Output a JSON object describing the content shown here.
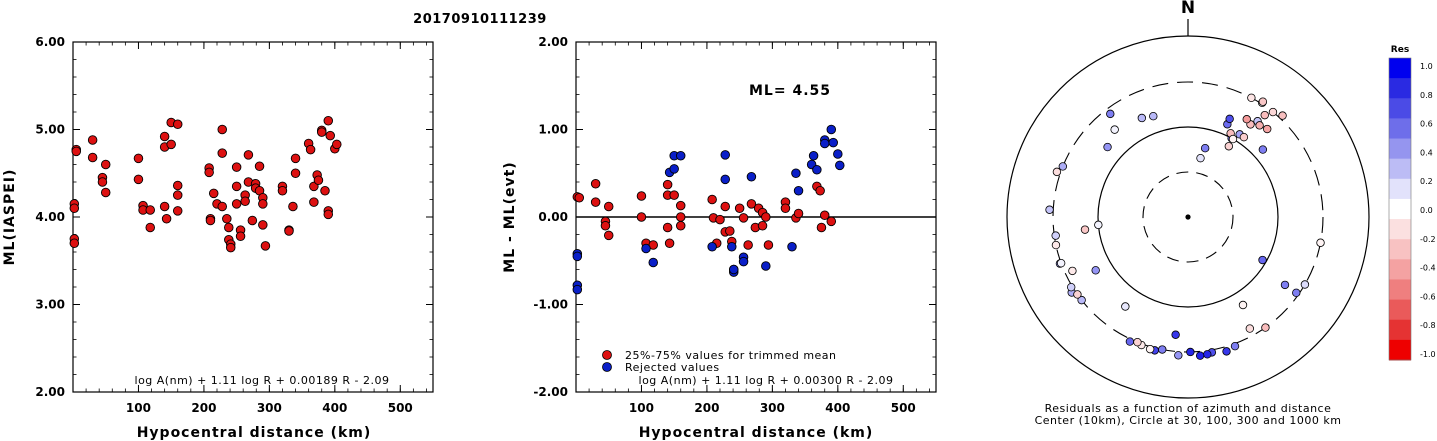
{
  "title": "20170910111239",
  "colors": {
    "accepted": "#dd1111",
    "rejected": "#0a1fc8",
    "frame": "#000000"
  },
  "chart_data": [
    {
      "type": "scatter",
      "xlabel": "Hypocentral distance (km)",
      "ylabel": "ML(IASPEI)",
      "xlim": [
        0,
        550
      ],
      "ylim": [
        2.0,
        6.0
      ],
      "xticks": [
        "100",
        "200",
        "300",
        "400",
        "500"
      ],
      "yticks": [
        "2.00",
        "3.00",
        "4.00",
        "5.00",
        "6.00"
      ],
      "formula": "log A(nm) + 1.11 log R + 0.00189 R - 2.09",
      "points": [
        [
          2,
          4.15
        ],
        [
          2,
          4.1
        ],
        [
          2,
          3.75
        ],
        [
          2,
          3.7
        ],
        [
          5,
          4.77
        ],
        [
          5,
          4.75
        ],
        [
          30,
          4.88
        ],
        [
          30,
          4.68
        ],
        [
          45,
          4.45
        ],
        [
          45,
          4.4
        ],
        [
          50,
          4.6
        ],
        [
          50,
          4.28
        ],
        [
          100,
          4.67
        ],
        [
          100,
          4.43
        ],
        [
          107,
          4.13
        ],
        [
          107,
          4.08
        ],
        [
          118,
          4.08
        ],
        [
          118,
          3.88
        ],
        [
          140,
          4.92
        ],
        [
          140,
          4.8
        ],
        [
          140,
          4.12
        ],
        [
          143,
          3.98
        ],
        [
          150,
          5.08
        ],
        [
          150,
          4.83
        ],
        [
          160,
          5.06
        ],
        [
          160,
          4.36
        ],
        [
          160,
          4.25
        ],
        [
          160,
          4.07
        ],
        [
          208,
          4.56
        ],
        [
          208,
          4.51
        ],
        [
          210,
          3.98
        ],
        [
          210,
          3.96
        ],
        [
          215,
          4.27
        ],
        [
          220,
          4.15
        ],
        [
          228,
          5.0
        ],
        [
          228,
          4.73
        ],
        [
          228,
          4.12
        ],
        [
          235,
          3.98
        ],
        [
          238,
          3.88
        ],
        [
          238,
          3.74
        ],
        [
          241,
          3.69
        ],
        [
          241,
          3.65
        ],
        [
          250,
          4.57
        ],
        [
          250,
          4.35
        ],
        [
          250,
          4.15
        ],
        [
          256,
          3.85
        ],
        [
          256,
          3.78
        ],
        [
          263,
          4.25
        ],
        [
          263,
          4.18
        ],
        [
          268,
          4.71
        ],
        [
          268,
          4.4
        ],
        [
          274,
          3.96
        ],
        [
          279,
          4.38
        ],
        [
          279,
          4.33
        ],
        [
          285,
          4.58
        ],
        [
          285,
          4.3
        ],
        [
          290,
          4.22
        ],
        [
          290,
          4.15
        ],
        [
          290,
          3.91
        ],
        [
          294,
          3.67
        ],
        [
          320,
          4.35
        ],
        [
          320,
          4.3
        ],
        [
          330,
          3.85
        ],
        [
          330,
          3.84
        ],
        [
          336,
          4.12
        ],
        [
          340,
          4.67
        ],
        [
          340,
          4.5
        ],
        [
          360,
          4.84
        ],
        [
          363,
          4.77
        ],
        [
          368,
          4.35
        ],
        [
          368,
          4.17
        ],
        [
          373,
          4.48
        ],
        [
          375,
          4.42
        ],
        [
          380,
          4.99
        ],
        [
          380,
          4.97
        ],
        [
          385,
          4.3
        ],
        [
          390,
          4.07
        ],
        [
          390,
          4.03
        ],
        [
          390,
          5.1
        ],
        [
          393,
          4.93
        ],
        [
          400,
          4.78
        ],
        [
          403,
          4.83
        ]
      ]
    },
    {
      "type": "scatter",
      "xlabel": "Hypocentral distance (km)",
      "ylabel": "ML - ML(evt)",
      "xlim": [
        0,
        550
      ],
      "ylim": [
        -2.0,
        2.0
      ],
      "xticks": [
        "100",
        "200",
        "300",
        "400",
        "500"
      ],
      "yticks": [
        "-2.00",
        "-1.00",
        "0.00",
        "1.00",
        "2.00"
      ],
      "annotation": "ML= 4.55",
      "legend": [
        "25%-75% values for trimmed mean",
        "Rejected values"
      ],
      "formula": "log A(nm) + 1.11 log R + 0.00300 R - 2.09",
      "accepted": [
        [
          2,
          0.23
        ],
        [
          5,
          0.22
        ],
        [
          30,
          0.38
        ],
        [
          30,
          0.17
        ],
        [
          45,
          -0.05
        ],
        [
          45,
          -0.1
        ],
        [
          50,
          0.12
        ],
        [
          50,
          -0.21
        ],
        [
          100,
          0.24
        ],
        [
          100,
          0.0
        ],
        [
          107,
          -0.3
        ],
        [
          118,
          -0.32
        ],
        [
          140,
          0.37
        ],
        [
          140,
          0.25
        ],
        [
          140,
          -0.12
        ],
        [
          143,
          -0.3
        ],
        [
          150,
          0.25
        ],
        [
          160,
          0.13
        ],
        [
          160,
          0.0
        ],
        [
          160,
          -0.1
        ],
        [
          208,
          0.2
        ],
        [
          210,
          -0.01
        ],
        [
          215,
          -0.3
        ],
        [
          220,
          -0.03
        ],
        [
          228,
          0.12
        ],
        [
          228,
          -0.17
        ],
        [
          235,
          -0.16
        ],
        [
          238,
          -0.28
        ],
        [
          250,
          0.1
        ],
        [
          256,
          -0.01
        ],
        [
          263,
          -0.32
        ],
        [
          268,
          0.15
        ],
        [
          274,
          -0.12
        ],
        [
          279,
          0.1
        ],
        [
          285,
          0.05
        ],
        [
          285,
          -0.1
        ],
        [
          290,
          0.0
        ],
        [
          294,
          -0.32
        ],
        [
          320,
          0.17
        ],
        [
          320,
          0.1
        ],
        [
          336,
          -0.01
        ],
        [
          340,
          0.04
        ],
        [
          368,
          0.35
        ],
        [
          373,
          0.3
        ],
        [
          375,
          -0.12
        ],
        [
          380,
          0.02
        ],
        [
          390,
          -0.05
        ]
      ],
      "rejected": [
        [
          2,
          -0.42
        ],
        [
          2,
          -0.45
        ],
        [
          2,
          -0.78
        ],
        [
          2,
          -0.83
        ],
        [
          107,
          -0.36
        ],
        [
          118,
          -0.52
        ],
        [
          143,
          0.51
        ],
        [
          150,
          0.7
        ],
        [
          150,
          0.55
        ],
        [
          160,
          0.7
        ],
        [
          208,
          -0.34
        ],
        [
          228,
          0.71
        ],
        [
          228,
          0.43
        ],
        [
          238,
          -0.34
        ],
        [
          241,
          -0.6
        ],
        [
          241,
          -0.63
        ],
        [
          241,
          -0.6
        ],
        [
          256,
          -0.46
        ],
        [
          256,
          -0.51
        ],
        [
          268,
          0.46
        ],
        [
          290,
          -0.56
        ],
        [
          330,
          -0.34
        ],
        [
          336,
          0.5
        ],
        [
          340,
          0.3
        ],
        [
          360,
          0.6
        ],
        [
          363,
          0.7
        ],
        [
          368,
          0.54
        ],
        [
          380,
          0.88
        ],
        [
          380,
          0.84
        ],
        [
          390,
          1.0
        ],
        [
          393,
          0.85
        ],
        [
          400,
          0.72
        ],
        [
          403,
          0.59
        ]
      ]
    },
    {
      "type": "scatter",
      "subtype": "polar",
      "north_label": "N",
      "caption_1": "Residuals as a function of azimuth and distance",
      "caption_2": "Center (10km), Circle at 30, 100, 300 and 1000 km",
      "colorbar_title": "Res",
      "colorbar_ticks": [
        "1.0",
        "0.8",
        "0.6",
        "0.4",
        "0.2",
        "0.0",
        "-0.2",
        "-0.4",
        "-0.6",
        "-0.8",
        "-1.0"
      ],
      "colorbar_colors": [
        "#0000ee",
        "#2a2ae2",
        "#4b4be6",
        "#6e6eea",
        "#9595ef",
        "#bcbcf5",
        "#e2e2fb",
        "#ffffff",
        "#fbe0e0",
        "#f8c2c2",
        "#f4a2a2",
        "#ef7f7f",
        "#ea5a5a",
        "#e53333",
        "#ee0000"
      ],
      "stations": [
        [
          12,
          0.12
        ],
        [
          14,
          0.55
        ],
        [
          23,
          0.62
        ],
        [
          23,
          0.75
        ],
        [
          29,
          0.58
        ],
        [
          32,
          0.4
        ],
        [
          36,
          0.25
        ],
        [
          33,
          0.0
        ],
        [
          48,
          0.55
        ],
        [
          30,
          -0.2
        ],
        [
          34,
          -0.3
        ],
        [
          42,
          -0.4
        ],
        [
          27,
          -0.3
        ],
        [
          31,
          -0.45
        ],
        [
          35,
          -0.22
        ],
        [
          38,
          -0.35
        ],
        [
          28,
          -0.12
        ],
        [
          33,
          -0.25
        ],
        [
          30,
          -0.05
        ],
        [
          39,
          -0.18
        ],
        [
          37,
          -0.3
        ],
        [
          43,
          -0.28
        ],
        [
          101,
          -0.05
        ],
        [
          125,
          0.55
        ],
        [
          125,
          0.55
        ],
        [
          120,
          0.65
        ],
        [
          160,
          0.55
        ],
        [
          164,
          0.85
        ],
        [
          170,
          0.75
        ],
        [
          172,
          0.92
        ],
        [
          175,
          0.95
        ],
        [
          179,
          0.92
        ],
        [
          184,
          0.45
        ],
        [
          186,
          0.85
        ],
        [
          191,
          0.55
        ],
        [
          194,
          0.8
        ],
        [
          200,
          -0.1
        ],
        [
          205,
          0.65
        ],
        [
          202,
          -0.2
        ],
        [
          232,
          0.3
        ],
        [
          237,
          0.35
        ],
        [
          239,
          0.2
        ],
        [
          240,
          0.45
        ],
        [
          250,
          0.4
        ],
        [
          250,
          0.05
        ],
        [
          258,
          -0.1
        ],
        [
          262,
          0.2
        ],
        [
          265,
          0.05
        ],
        [
          263,
          -0.25
        ],
        [
          311,
          0.45
        ],
        [
          320,
          0.05
        ],
        [
          335,
          0.3
        ],
        [
          341,
          0.3
        ],
        [
          323,
          0.55
        ],
        [
          145,
          -0.3
        ],
        [
          148,
          -0.05
        ],
        [
          151,
          -0.15
        ],
        [
          245,
          -0.1
        ],
        [
          235,
          -0.2
        ],
        [
          196,
          -0.05
        ],
        [
          289,
          -0.15
        ],
        [
          292,
          0.35
        ],
        [
          273,
          0.25
        ],
        [
          120,
          0.15
        ],
        [
          215,
          0.1
        ]
      ]
    }
  ]
}
